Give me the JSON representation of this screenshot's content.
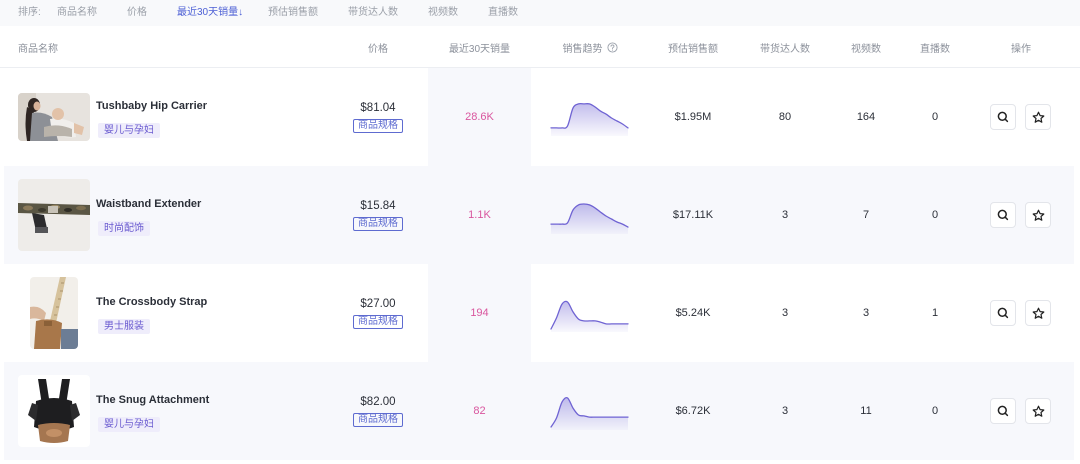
{
  "sort_bar": {
    "label": "排序:",
    "options": [
      "商品名称",
      "价格",
      "最近30天销量↓",
      "预估销售额",
      "带货达人数",
      "视频数",
      "直播数"
    ],
    "active_index": 2
  },
  "columns": {
    "name": "商品名称",
    "price": "价格",
    "sales_30d": "最近30天销量",
    "trend": "销售趋势",
    "revenue": "预估销售额",
    "influencers": "带货达人数",
    "videos": "视频数",
    "lives": "直播数",
    "actions": "操作"
  },
  "icons": {
    "trend_help": "help-circle-icon",
    "search": "search-icon",
    "favorite": "star-icon"
  },
  "colors": {
    "accent": "#4c5fd5",
    "sales_value": "#d9569e",
    "tag_text": "#6a5ad0",
    "tag_bg": "#efedfb",
    "spec_border": "#5e6bd0",
    "trend_line": "#6f63d3",
    "row_alt_bg": "#f7f8fc"
  },
  "rows": [
    {
      "title": "Tushbaby Hip Carrier",
      "category": "婴儿与孕妇",
      "price": "$81.04",
      "spec": "商品规格",
      "sales_30d": "28.6K",
      "revenue": "$1.95M",
      "influencers": "80",
      "videos": "164",
      "lives": "0",
      "trend": [
        17,
        17,
        17,
        23,
        83,
        97,
        97,
        97,
        87,
        73,
        63,
        50,
        40,
        30,
        17
      ]
    },
    {
      "title": "Waistband Extender",
      "category": "时尚配饰",
      "price": "$15.84",
      "spec": "商品规格",
      "sales_30d": "1.1K",
      "revenue": "$17.11K",
      "influencers": "3",
      "videos": "7",
      "lives": "0",
      "trend": [
        23,
        23,
        23,
        27,
        70,
        87,
        90,
        87,
        77,
        63,
        50,
        40,
        30,
        23,
        13
      ]
    },
    {
      "title": "The Crossbody Strap",
      "category": "男士服装",
      "price": "$27.00",
      "spec": "商品规格",
      "sales_30d": "194",
      "revenue": "$5.24K",
      "influencers": "3",
      "videos": "3",
      "lives": "1",
      "trend": [
        0,
        37,
        83,
        90,
        57,
        33,
        27,
        27,
        27,
        23,
        17,
        17,
        17,
        17,
        17
      ]
    },
    {
      "title": "The Snug Attachment",
      "category": "婴儿与孕妇",
      "price": "$82.00",
      "spec": "商品规格",
      "sales_30d": "82",
      "revenue": "$6.72K",
      "influencers": "3",
      "videos": "11",
      "lives": "0",
      "trend": [
        0,
        30,
        83,
        97,
        63,
        40,
        37,
        33,
        33,
        33,
        33,
        33,
        33,
        33,
        33
      ]
    }
  ]
}
